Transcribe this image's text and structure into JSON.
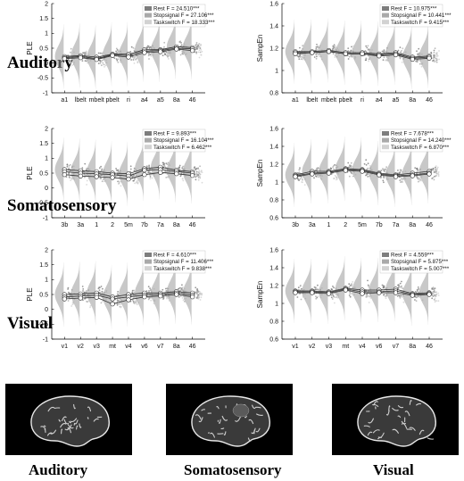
{
  "row_labels": [
    "Auditory",
    "Somatosensory",
    "Visual"
  ],
  "bottom_labels": [
    "Auditory",
    "Somatosensory",
    "Visual"
  ],
  "colors": {
    "rest": "#7d7d7d",
    "stopsignal": "#a9a9a9",
    "taskswitch": "#d2d2d2",
    "line": "#333333"
  },
  "chart_data": [
    {
      "type": "scatter",
      "panel": "auditory-ple",
      "xlabel": "",
      "ylabel": "PLE",
      "ylim": [
        -1,
        2
      ],
      "yticks": [
        -1,
        -0.5,
        0,
        0.5,
        1,
        1.5,
        2
      ],
      "categories": [
        "a1",
        "lbelt",
        "mbelt",
        "pbelt",
        "ri",
        "a4",
        "a5",
        "8a",
        "46"
      ],
      "legend": [
        "Rest F = 24.510***",
        "Stopsignal F = 27.106***",
        "Taskswitch F = 18.333***"
      ],
      "series": [
        {
          "values": [
            0.22,
            0.25,
            0.2,
            0.3,
            0.3,
            0.45,
            0.45,
            0.55,
            0.52
          ]
        },
        {
          "values": [
            0.18,
            0.22,
            0.15,
            0.28,
            0.25,
            0.4,
            0.42,
            0.5,
            0.48
          ]
        },
        {
          "values": [
            0.15,
            0.18,
            0.12,
            0.25,
            0.2,
            0.35,
            0.38,
            0.47,
            0.42
          ]
        }
      ]
    },
    {
      "type": "scatter",
      "panel": "auditory-sampen",
      "xlabel": "",
      "ylabel": "SampEn",
      "ylim": [
        0.8,
        1.6
      ],
      "yticks": [
        0.8,
        1,
        1.2,
        1.4,
        1.6
      ],
      "categories": [
        "a1",
        "lbelt",
        "mbelt",
        "pbelt",
        "ri",
        "a4",
        "a5",
        "8a",
        "46"
      ],
      "legend": [
        "Rest F = 10.975***",
        "Stopsignal F = 10.441***",
        "Taskswitch F = 9.415***"
      ],
      "series": [
        {
          "values": [
            1.17,
            1.17,
            1.18,
            1.16,
            1.16,
            1.15,
            1.16,
            1.12,
            1.13
          ]
        },
        {
          "values": [
            1.16,
            1.16,
            1.17,
            1.15,
            1.15,
            1.14,
            1.15,
            1.11,
            1.12
          ]
        },
        {
          "values": [
            1.15,
            1.16,
            1.17,
            1.15,
            1.15,
            1.13,
            1.14,
            1.1,
            1.11
          ]
        }
      ]
    },
    {
      "type": "scatter",
      "panel": "somatosensory-ple",
      "xlabel": "",
      "ylabel": "PLE",
      "ylim": [
        -1,
        2
      ],
      "yticks": [
        -1,
        -0.5,
        0,
        0.5,
        1,
        1.5,
        2
      ],
      "categories": [
        "3b",
        "3a",
        "1",
        "2",
        "5m",
        "7b",
        "7a",
        "8a",
        "46"
      ],
      "legend": [
        "Rest F = 9.893***",
        "Stopsignal F = 16.104***",
        "Taskswitch F = 6.462***"
      ],
      "series": [
        {
          "values": [
            0.62,
            0.58,
            0.55,
            0.5,
            0.48,
            0.65,
            0.7,
            0.6,
            0.55
          ]
        },
        {
          "values": [
            0.55,
            0.5,
            0.48,
            0.45,
            0.4,
            0.6,
            0.62,
            0.55,
            0.5
          ]
        },
        {
          "values": [
            0.45,
            0.4,
            0.38,
            0.35,
            0.3,
            0.45,
            0.52,
            0.48,
            0.42
          ]
        }
      ]
    },
    {
      "type": "scatter",
      "panel": "somatosensory-sampen",
      "xlabel": "",
      "ylabel": "SampEn",
      "ylim": [
        0.6,
        1.6
      ],
      "yticks": [
        0.6,
        0.8,
        1,
        1.2,
        1.4,
        1.6
      ],
      "categories": [
        "3b",
        "3a",
        "1",
        "2",
        "5m",
        "7b",
        "7a",
        "8a",
        "46"
      ],
      "legend": [
        "Rest F = 7.678***",
        "Stopsignal F = 14.240***",
        "Taskswitch F = 6.870***"
      ],
      "series": [
        {
          "values": [
            1.08,
            1.12,
            1.12,
            1.15,
            1.14,
            1.1,
            1.08,
            1.1,
            1.12
          ]
        },
        {
          "values": [
            1.07,
            1.1,
            1.11,
            1.14,
            1.13,
            1.09,
            1.07,
            1.08,
            1.1
          ]
        },
        {
          "values": [
            1.06,
            1.09,
            1.1,
            1.13,
            1.12,
            1.08,
            1.06,
            1.07,
            1.09
          ]
        }
      ]
    },
    {
      "type": "scatter",
      "panel": "visual-ple",
      "xlabel": "",
      "ylabel": "PLE",
      "ylim": [
        -1,
        2
      ],
      "yticks": [
        -1,
        -0.5,
        0,
        0.5,
        1,
        1.5,
        2
      ],
      "categories": [
        "v1",
        "v2",
        "v3",
        "mt",
        "v4",
        "v6",
        "v7",
        "8a",
        "46"
      ],
      "legend": [
        "Rest F = 4.610***",
        "Stopsignal F = 11.406***",
        "Taskswitch F = 9.838***"
      ],
      "series": [
        {
          "values": [
            0.5,
            0.52,
            0.55,
            0.42,
            0.5,
            0.55,
            0.55,
            0.6,
            0.55
          ]
        },
        {
          "values": [
            0.42,
            0.45,
            0.48,
            0.35,
            0.42,
            0.48,
            0.5,
            0.55,
            0.48
          ]
        },
        {
          "values": [
            0.35,
            0.38,
            0.4,
            0.18,
            0.32,
            0.42,
            0.45,
            0.5,
            0.42
          ]
        }
      ]
    },
    {
      "type": "scatter",
      "panel": "visual-sampen",
      "xlabel": "",
      "ylabel": "SampEn",
      "ylim": [
        0.6,
        1.6
      ],
      "yticks": [
        0.6,
        0.8,
        1,
        1.2,
        1.4,
        1.6
      ],
      "categories": [
        "v1",
        "v2",
        "v3",
        "mt",
        "v4",
        "v6",
        "v7",
        "8a",
        "46"
      ],
      "legend": [
        "Rest F = 4.559***",
        "Stopsignal F = 5.875***",
        "Taskswitch F = 5.007***"
      ],
      "series": [
        {
          "values": [
            1.14,
            1.14,
            1.13,
            1.17,
            1.15,
            1.15,
            1.16,
            1.11,
            1.12
          ]
        },
        {
          "values": [
            1.13,
            1.13,
            1.12,
            1.16,
            1.13,
            1.13,
            1.14,
            1.1,
            1.11
          ]
        },
        {
          "values": [
            1.12,
            1.12,
            1.11,
            1.15,
            1.11,
            1.12,
            1.12,
            1.09,
            1.1
          ]
        }
      ]
    }
  ]
}
